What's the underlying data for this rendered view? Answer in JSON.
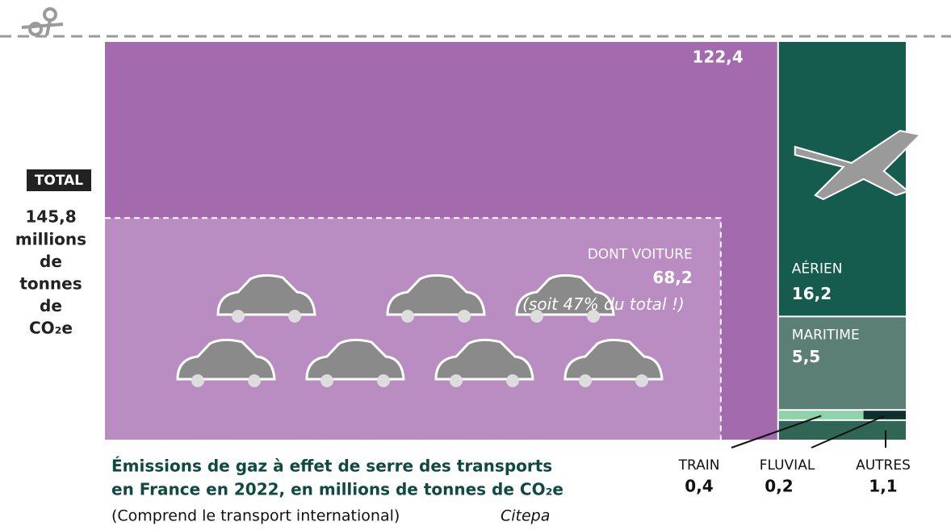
{
  "chart_data": {
    "type": "treemap",
    "title": [
      "Émissions de gaz à effet de serre des transports",
      "en France en 2022, en millions de tonnes de CO₂e"
    ],
    "subtitle": "(Comprend le transport international)",
    "source": "Citepa",
    "total": {
      "badge": "TOTAL",
      "value": 145.8,
      "value_label": "145,8",
      "unit": [
        "millions",
        "de",
        "tonnes",
        "de",
        "CO₂e"
      ]
    },
    "categories": [
      null,
      "AÉRIEN",
      "MARITIME",
      "TRAIN",
      "FLUVIAL",
      "AUTRES"
    ],
    "values": [
      122.4,
      16.2,
      5.5,
      0.4,
      0.2,
      1.1
    ],
    "value_labels": [
      "122,4",
      "16,2",
      "5,5",
      "0,4",
      "0,2",
      "1,1"
    ],
    "colors": [
      "#a36aad",
      "#155c4f",
      "#5b7f74",
      "#8fd1a8",
      "#0e2f2c",
      "#2f6656"
    ],
    "subset": {
      "name": "DONT VOITURE",
      "value": 68.2,
      "value_label": "68,2",
      "note": "(soit 47% du total !)",
      "color": "#b98cc2"
    }
  }
}
